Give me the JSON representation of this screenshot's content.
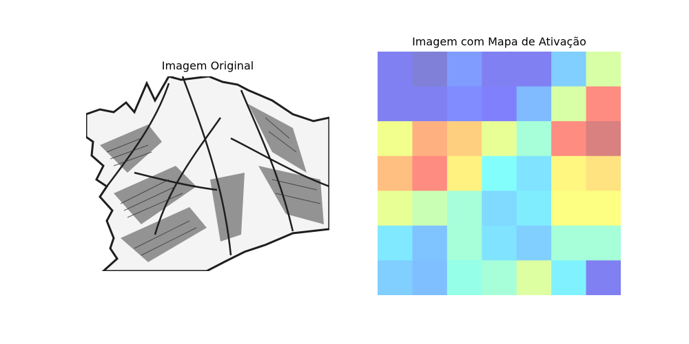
{
  "chart_data": [
    {
      "type": "image",
      "title": "Imagem Original",
      "image_subject": "pen-and-ink sketch of a dragon wing"
    },
    {
      "type": "heatmap",
      "title": "Imagem com Mapa de Ativação",
      "rows": 7,
      "cols": 7,
      "colormap": "jet",
      "alpha": 0.5,
      "values": [
        [
          0.1,
          0.05,
          0.18,
          0.1,
          0.1,
          0.28,
          0.55
        ],
        [
          0.1,
          0.1,
          0.15,
          0.12,
          0.24,
          0.55,
          0.85
        ],
        [
          0.6,
          0.78,
          0.72,
          0.58,
          0.45,
          0.85,
          0.95
        ],
        [
          0.75,
          0.85,
          0.65,
          0.38,
          0.32,
          0.64,
          0.68
        ],
        [
          0.58,
          0.52,
          0.45,
          0.3,
          0.34,
          0.62,
          0.62
        ],
        [
          0.33,
          0.26,
          0.45,
          0.32,
          0.28,
          0.45,
          0.45
        ],
        [
          0.28,
          0.25,
          0.42,
          0.45,
          0.56,
          0.35,
          0.1
        ]
      ]
    }
  ]
}
